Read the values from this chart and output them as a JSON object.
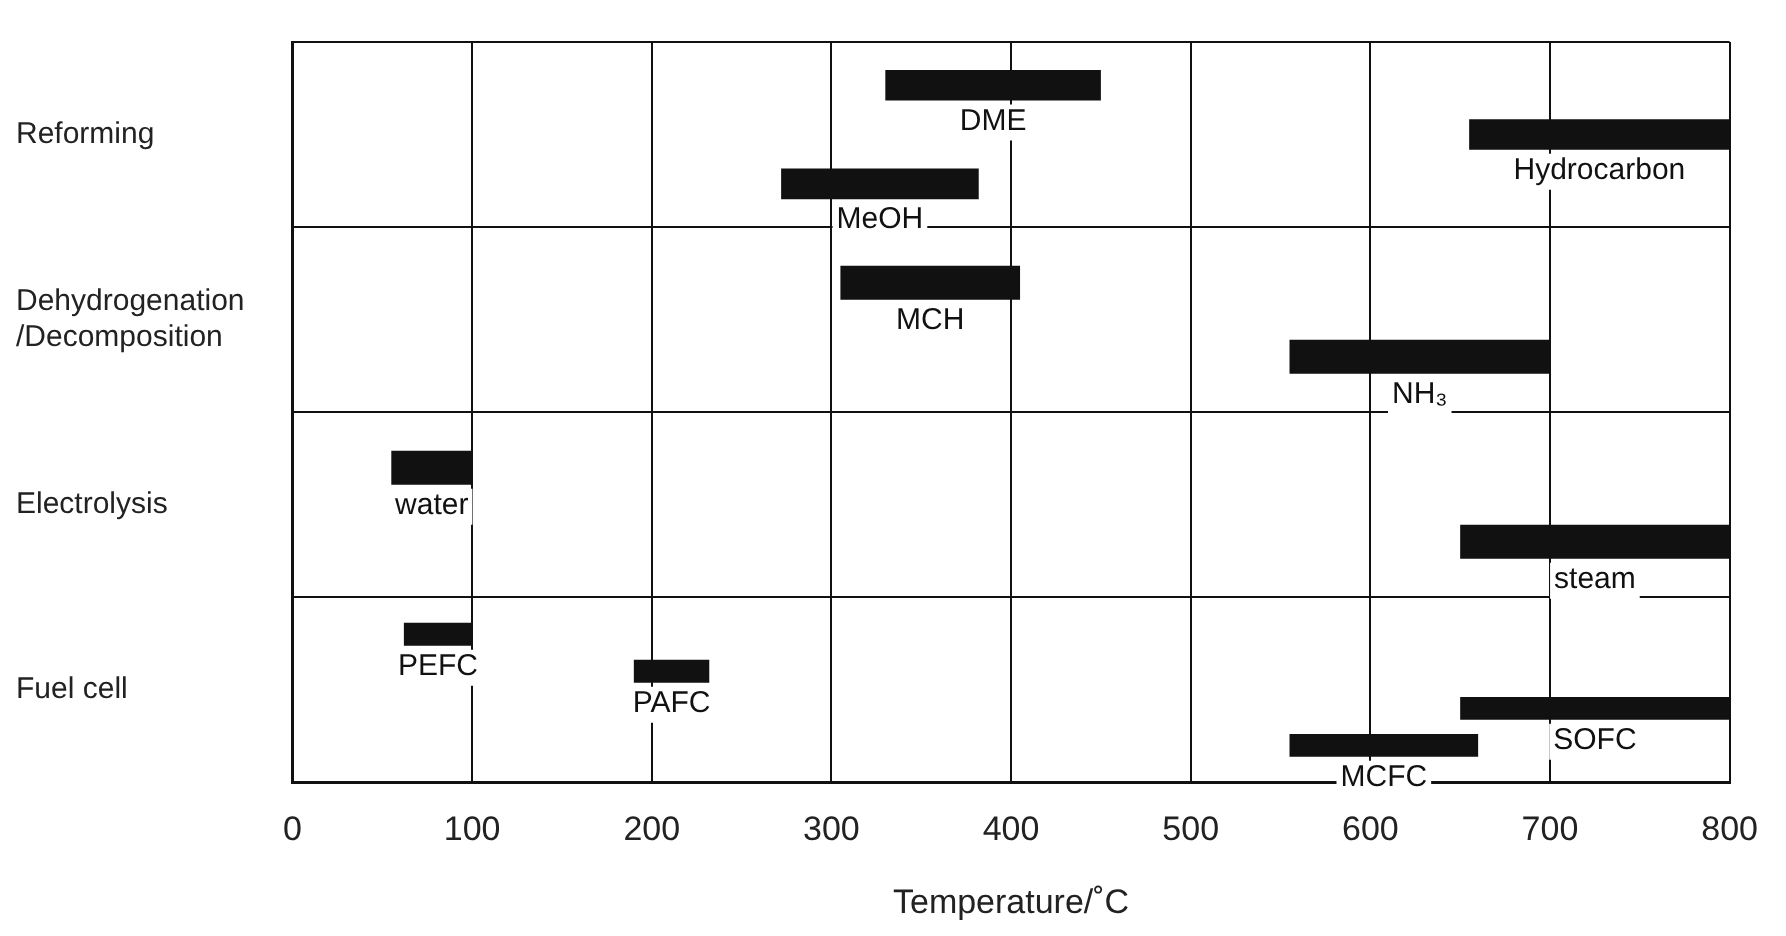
{
  "chart_data": {
    "type": "bar",
    "orientation": "horizontal",
    "xlabel": "Temperature/˚C",
    "categories": [
      "Reforming",
      "Dehydrogenation\n/Decomposition",
      "Electrolysis",
      "Fuel cell"
    ],
    "series": [
      {
        "color": "#111111",
        "base": [
          330,
          305,
          55,
          62
        ],
        "values": [
          120,
          100,
          45,
          38
        ],
        "value_labels": [
          "DME",
          "MCH",
          "water",
          "PEFC"
        ]
      },
      {
        "color": "#111111",
        "base": [
          655,
          555,
          650,
          190
        ],
        "values": [
          145,
          145,
          150,
          42
        ],
        "value_labels": [
          "Hydrocarbon",
          "NH₃",
          "steam",
          "PAFC"
        ]
      },
      {
        "color": "#111111",
        "base": [
          272,
          null,
          null,
          650
        ],
        "values": [
          110,
          null,
          null,
          150
        ],
        "value_labels": [
          "MeOH",
          null,
          null,
          "SOFC"
        ]
      },
      {
        "color": "#111111",
        "base": [
          null,
          null,
          null,
          555
        ],
        "values": [
          null,
          null,
          null,
          105
        ],
        "value_labels": [
          null,
          null,
          null,
          "MCFC"
        ]
      }
    ],
    "xlim": [
      0,
      800
    ],
    "xticks": [
      0,
      100,
      200,
      300,
      400,
      500,
      600,
      700,
      800
    ],
    "grid": true,
    "legend": false
  }
}
